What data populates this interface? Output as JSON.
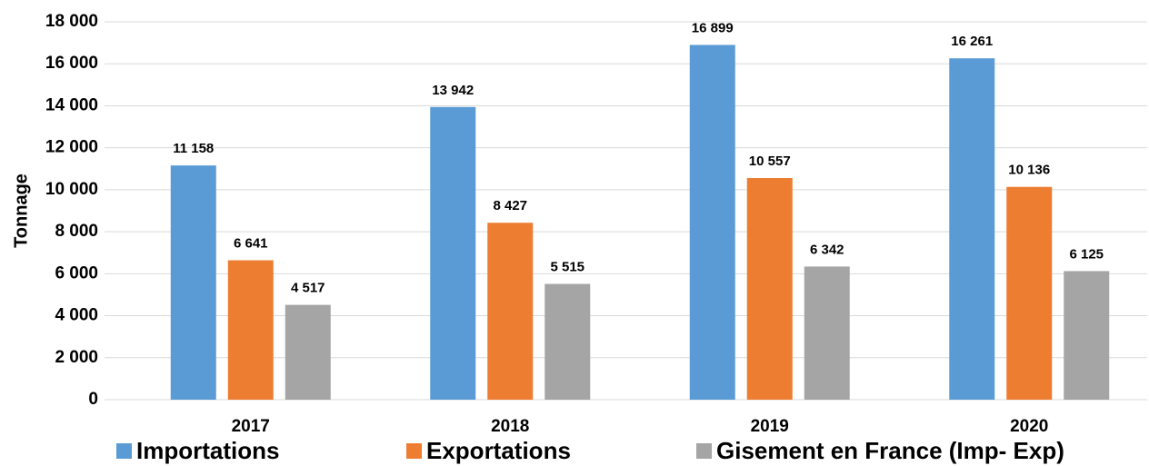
{
  "chart_data": {
    "type": "bar",
    "ylabel": "Tonnage",
    "categories": [
      "2017",
      "2018",
      "2019",
      "2020"
    ],
    "series": [
      {
        "name": "Importations",
        "color": "#5b9bd5",
        "values": [
          11158,
          13942,
          16899,
          16261
        ],
        "value_labels": [
          "11 158",
          "13 942",
          "16 899",
          "16 261"
        ]
      },
      {
        "name": "Exportations",
        "color": "#ed7d31",
        "values": [
          6641,
          8427,
          10557,
          10136
        ],
        "value_labels": [
          "6 641",
          "8 427",
          "10 557",
          "10 136"
        ]
      },
      {
        "name": "Gisement en France (Imp- Exp)",
        "color": "#a5a5a5",
        "values": [
          4517,
          5515,
          6342,
          6125
        ],
        "value_labels": [
          "4 517",
          "5 515",
          "6 342",
          "6 125"
        ]
      }
    ],
    "ylim": [
      0,
      18000
    ],
    "yticks": [
      0,
      {
        "value": 2000,
        "label": "2 000"
      },
      {
        "value": 4000,
        "label": "4 000"
      },
      {
        "value": 6000,
        "label": "6 000"
      },
      {
        "value": 8000,
        "label": "8 000"
      },
      {
        "value": 10000,
        "label": "10 000"
      },
      {
        "value": 12000,
        "label": "12 000"
      },
      {
        "value": 14000,
        "label": "14 000"
      },
      {
        "value": 16000,
        "label": "16 000"
      },
      {
        "value": 18000,
        "label": "18 000"
      }
    ],
    "grid": true,
    "legend": "bottom"
  }
}
